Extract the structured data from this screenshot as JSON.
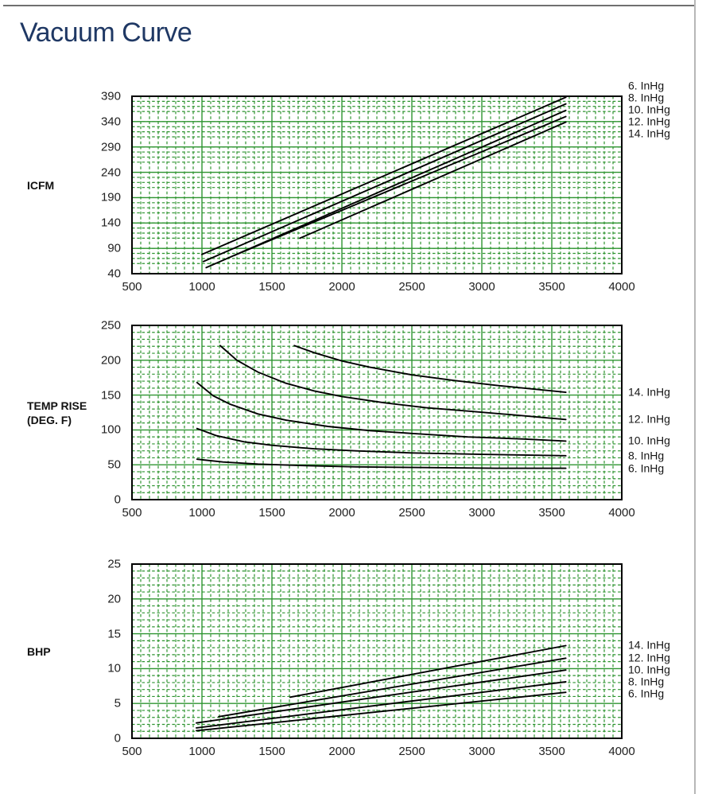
{
  "page": {
    "title": "Vacuum Curve"
  },
  "colors": {
    "title_blue": "#1f3864",
    "grid_green": "#2e9430",
    "curve_black": "#000000",
    "plot_border_black": "#000000",
    "tick_text": "#212121",
    "top_rule_gray": "#707070",
    "right_rule_gray": "#b7b7b7"
  },
  "chart_data": [
    {
      "type": "line",
      "name": "icfm-vs-rpm",
      "title": "",
      "xlabel": "",
      "ylabel": "ICFM",
      "xlim": [
        500,
        4000
      ],
      "ylim": [
        40,
        390
      ],
      "x_ticks": [
        500,
        1000,
        1500,
        2000,
        2500,
        3000,
        3500,
        4000
      ],
      "y_ticks": [
        390,
        340,
        290,
        240,
        190,
        140,
        90,
        40
      ],
      "grid": true,
      "legend_position": "right",
      "series": [
        {
          "name": "6. InHg",
          "points": [
            [
              1000,
              78
            ],
            [
              3600,
              388
            ]
          ]
        },
        {
          "name": "8. InHg",
          "points": [
            [
              1010,
              64
            ],
            [
              3600,
              375
            ]
          ]
        },
        {
          "name": "10. InHg",
          "points": [
            [
              1030,
              52
            ],
            [
              3600,
              362
            ]
          ]
        },
        {
          "name": "12. InHg",
          "points": [
            [
              1230,
              76
            ],
            [
              3600,
              350
            ]
          ]
        },
        {
          "name": "14. InHg",
          "points": [
            [
              1700,
              110
            ],
            [
              3600,
              339
            ]
          ]
        }
      ]
    },
    {
      "type": "line",
      "name": "temp-rise-vs-rpm",
      "title": "",
      "xlabel": "",
      "ylabel": "TEMP RISE\n(DEG. F)",
      "xlim": [
        500,
        4000
      ],
      "ylim": [
        0,
        250
      ],
      "x_ticks": [
        500,
        1000,
        1500,
        2000,
        2500,
        3000,
        3500,
        4000
      ],
      "y_ticks": [
        250,
        200,
        150,
        100,
        50,
        0
      ],
      "grid": true,
      "legend_position": "right",
      "series": [
        {
          "name": "14. InHg",
          "points": [
            [
              1660,
              221
            ],
            [
              1800,
              211
            ],
            [
              2000,
              199
            ],
            [
              2200,
              190
            ],
            [
              2500,
              179
            ],
            [
              2800,
              171
            ],
            [
              3100,
              164
            ],
            [
              3400,
              158
            ],
            [
              3600,
              154
            ]
          ]
        },
        {
          "name": "12. InHg",
          "points": [
            [
              1130,
              221
            ],
            [
              1250,
              200
            ],
            [
              1400,
              183
            ],
            [
              1600,
              167
            ],
            [
              1800,
              156
            ],
            [
              2000,
              148
            ],
            [
              2300,
              139
            ],
            [
              2600,
              132
            ],
            [
              2900,
              127
            ],
            [
              3200,
              122
            ],
            [
              3600,
              115
            ]
          ]
        },
        {
          "name": "10. InHg",
          "points": [
            [
              965,
              168
            ],
            [
              1080,
              149
            ],
            [
              1200,
              137
            ],
            [
              1400,
              123
            ],
            [
              1600,
              114
            ],
            [
              1900,
              105
            ],
            [
              2200,
              99
            ],
            [
              2500,
              95
            ],
            [
              2900,
              90
            ],
            [
              3300,
              87
            ],
            [
              3600,
              84
            ]
          ]
        },
        {
          "name": "8. InHg",
          "points": [
            [
              965,
              102
            ],
            [
              1100,
              92
            ],
            [
              1300,
              83
            ],
            [
              1500,
              78
            ],
            [
              1800,
              73
            ],
            [
              2100,
              70
            ],
            [
              2500,
              67
            ],
            [
              3000,
              65
            ],
            [
              3600,
              63
            ]
          ]
        },
        {
          "name": "6. InHg",
          "points": [
            [
              965,
              58
            ],
            [
              1150,
              54
            ],
            [
              1400,
              51
            ],
            [
              1700,
              49
            ],
            [
              2100,
              47
            ],
            [
              2600,
              46
            ],
            [
              3100,
              45
            ],
            [
              3600,
              45
            ]
          ]
        }
      ]
    },
    {
      "type": "line",
      "name": "bhp-vs-rpm",
      "title": "",
      "xlabel": "",
      "ylabel": "BHP",
      "xlim": [
        500,
        4000
      ],
      "ylim": [
        0,
        25
      ],
      "x_ticks": [
        500,
        1000,
        1500,
        2000,
        2500,
        3000,
        3500,
        4000
      ],
      "y_ticks": [
        25,
        20,
        15,
        10,
        5,
        0
      ],
      "grid": true,
      "legend_position": "right",
      "series": [
        {
          "name": "14. InHg",
          "points": [
            [
              1630,
              5.9
            ],
            [
              3600,
              13.3
            ]
          ]
        },
        {
          "name": "12. InHg",
          "points": [
            [
              1120,
              3.1
            ],
            [
              3600,
              11.5
            ]
          ]
        },
        {
          "name": "10. InHg",
          "points": [
            [
              960,
              2.2
            ],
            [
              3600,
              9.8
            ]
          ]
        },
        {
          "name": "8. InHg",
          "points": [
            [
              960,
              1.5
            ],
            [
              3600,
              8.1
            ]
          ]
        },
        {
          "name": "6. InHg",
          "points": [
            [
              960,
              1.1
            ],
            [
              3600,
              6.6
            ]
          ]
        }
      ]
    }
  ]
}
